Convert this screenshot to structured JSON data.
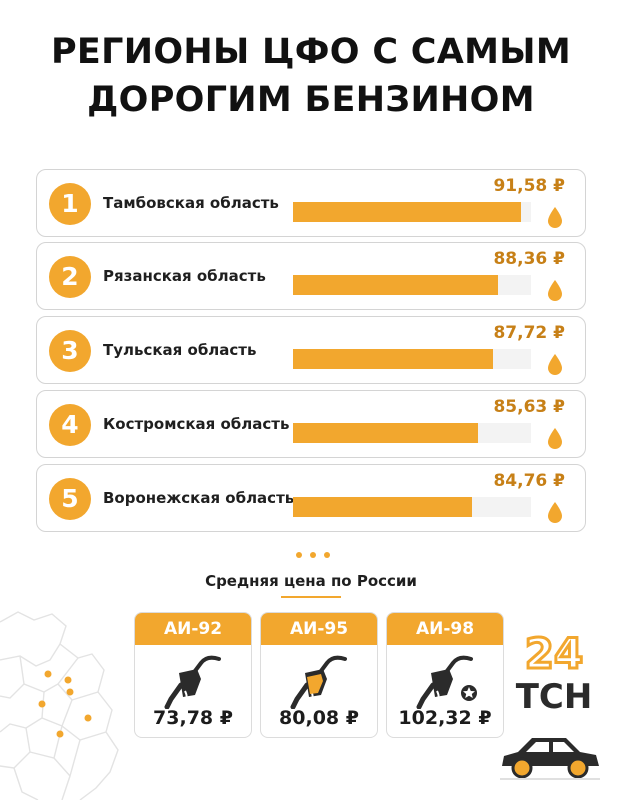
{
  "header": {
    "title_line1": "РЕГИОНЫ ЦФО С САМЫМ",
    "title_line2": "ДОРОГИМ БЕНЗИНОМ"
  },
  "chart_data": {
    "type": "bar",
    "orientation": "horizontal",
    "categories": [
      "Тамбовская область",
      "Рязанская область",
      "Тульская область",
      "Костромская область",
      "Воронежская область"
    ],
    "ranks": [
      "1",
      "2",
      "3",
      "4",
      "5"
    ],
    "values": [
      91.58,
      88.36,
      87.72,
      85.63,
      84.76
    ],
    "value_labels": [
      "91,58 ₽",
      "88,36 ₽",
      "87,72 ₽",
      "85,63 ₽",
      "84,76 ₽"
    ],
    "bar_color": "#f2a72e",
    "value_color": "#c78017"
  },
  "average": {
    "title": "Средняя цена по России",
    "fuels": [
      {
        "name": "АИ-92",
        "price": "73,78 ₽",
        "icon": "fuel-nozzle-icon"
      },
      {
        "name": "АИ-95",
        "price": "80,08 ₽",
        "icon": "fuel-nozzle-icon"
      },
      {
        "name": "АИ-98",
        "price": "102,32 ₽",
        "icon": "fuel-nozzle-star-icon"
      }
    ]
  },
  "logo": {
    "digits": "24",
    "text": "ТСН"
  },
  "colors": {
    "accent": "#f2a72e",
    "dark": "#1c1c1c"
  }
}
